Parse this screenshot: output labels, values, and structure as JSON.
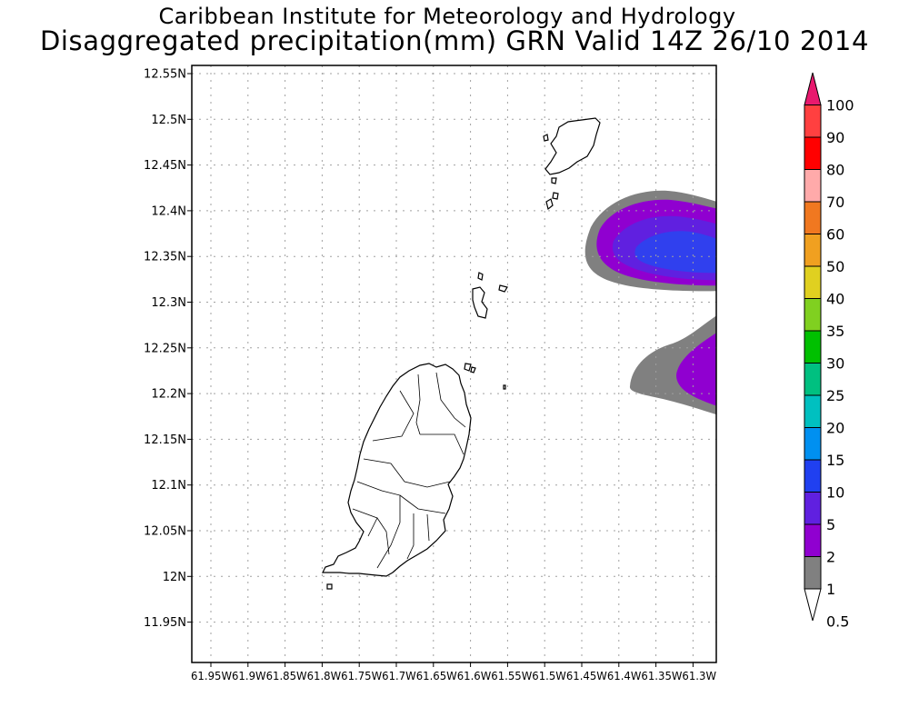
{
  "header": {
    "title": "Caribbean Institute for Meteorology and Hydrology",
    "subtitle": "Disaggregated precipitation(mm) GRN Valid 14Z 26/10 2014"
  },
  "map": {
    "lat_labels": [
      "12.55N",
      "12.5N",
      "12.45N",
      "12.4N",
      "12.35N",
      "12.3N",
      "12.25N",
      "12.2N",
      "12.15N",
      "12.1N",
      "12.05N",
      "12N",
      "11.95N"
    ],
    "lon_labels": [
      "61.95W",
      "61.9W",
      "61.85W",
      "61.8W",
      "61.75W",
      "61.7W",
      "61.65W",
      "61.6W",
      "61.55W",
      "61.5W",
      "61.45W",
      "61.4W",
      "61.35W",
      "61.3W"
    ],
    "lon_label_line": "61.95W61.9W61.85W61.8W61.75W61.7W61.65W61.6W61.55W61.5W61.45W61.4W61.35W61.3W"
  },
  "legend": {
    "labels": [
      "100",
      "90",
      "80",
      "70",
      "60",
      "50",
      "40",
      "35",
      "30",
      "25",
      "20",
      "15",
      "10",
      "5",
      "2",
      "1",
      "0.5"
    ],
    "colors": [
      "#e8196e",
      "#ff4040",
      "#ff0000",
      "#ffaaaa",
      "#f07820",
      "#f0a020",
      "#e0d020",
      "#80d020",
      "#00c000",
      "#00c080",
      "#00c0c0",
      "#0090f0",
      "#2040f0",
      "#6020e0",
      "#9000d0",
      "#808080",
      "#ffffff"
    ]
  }
}
